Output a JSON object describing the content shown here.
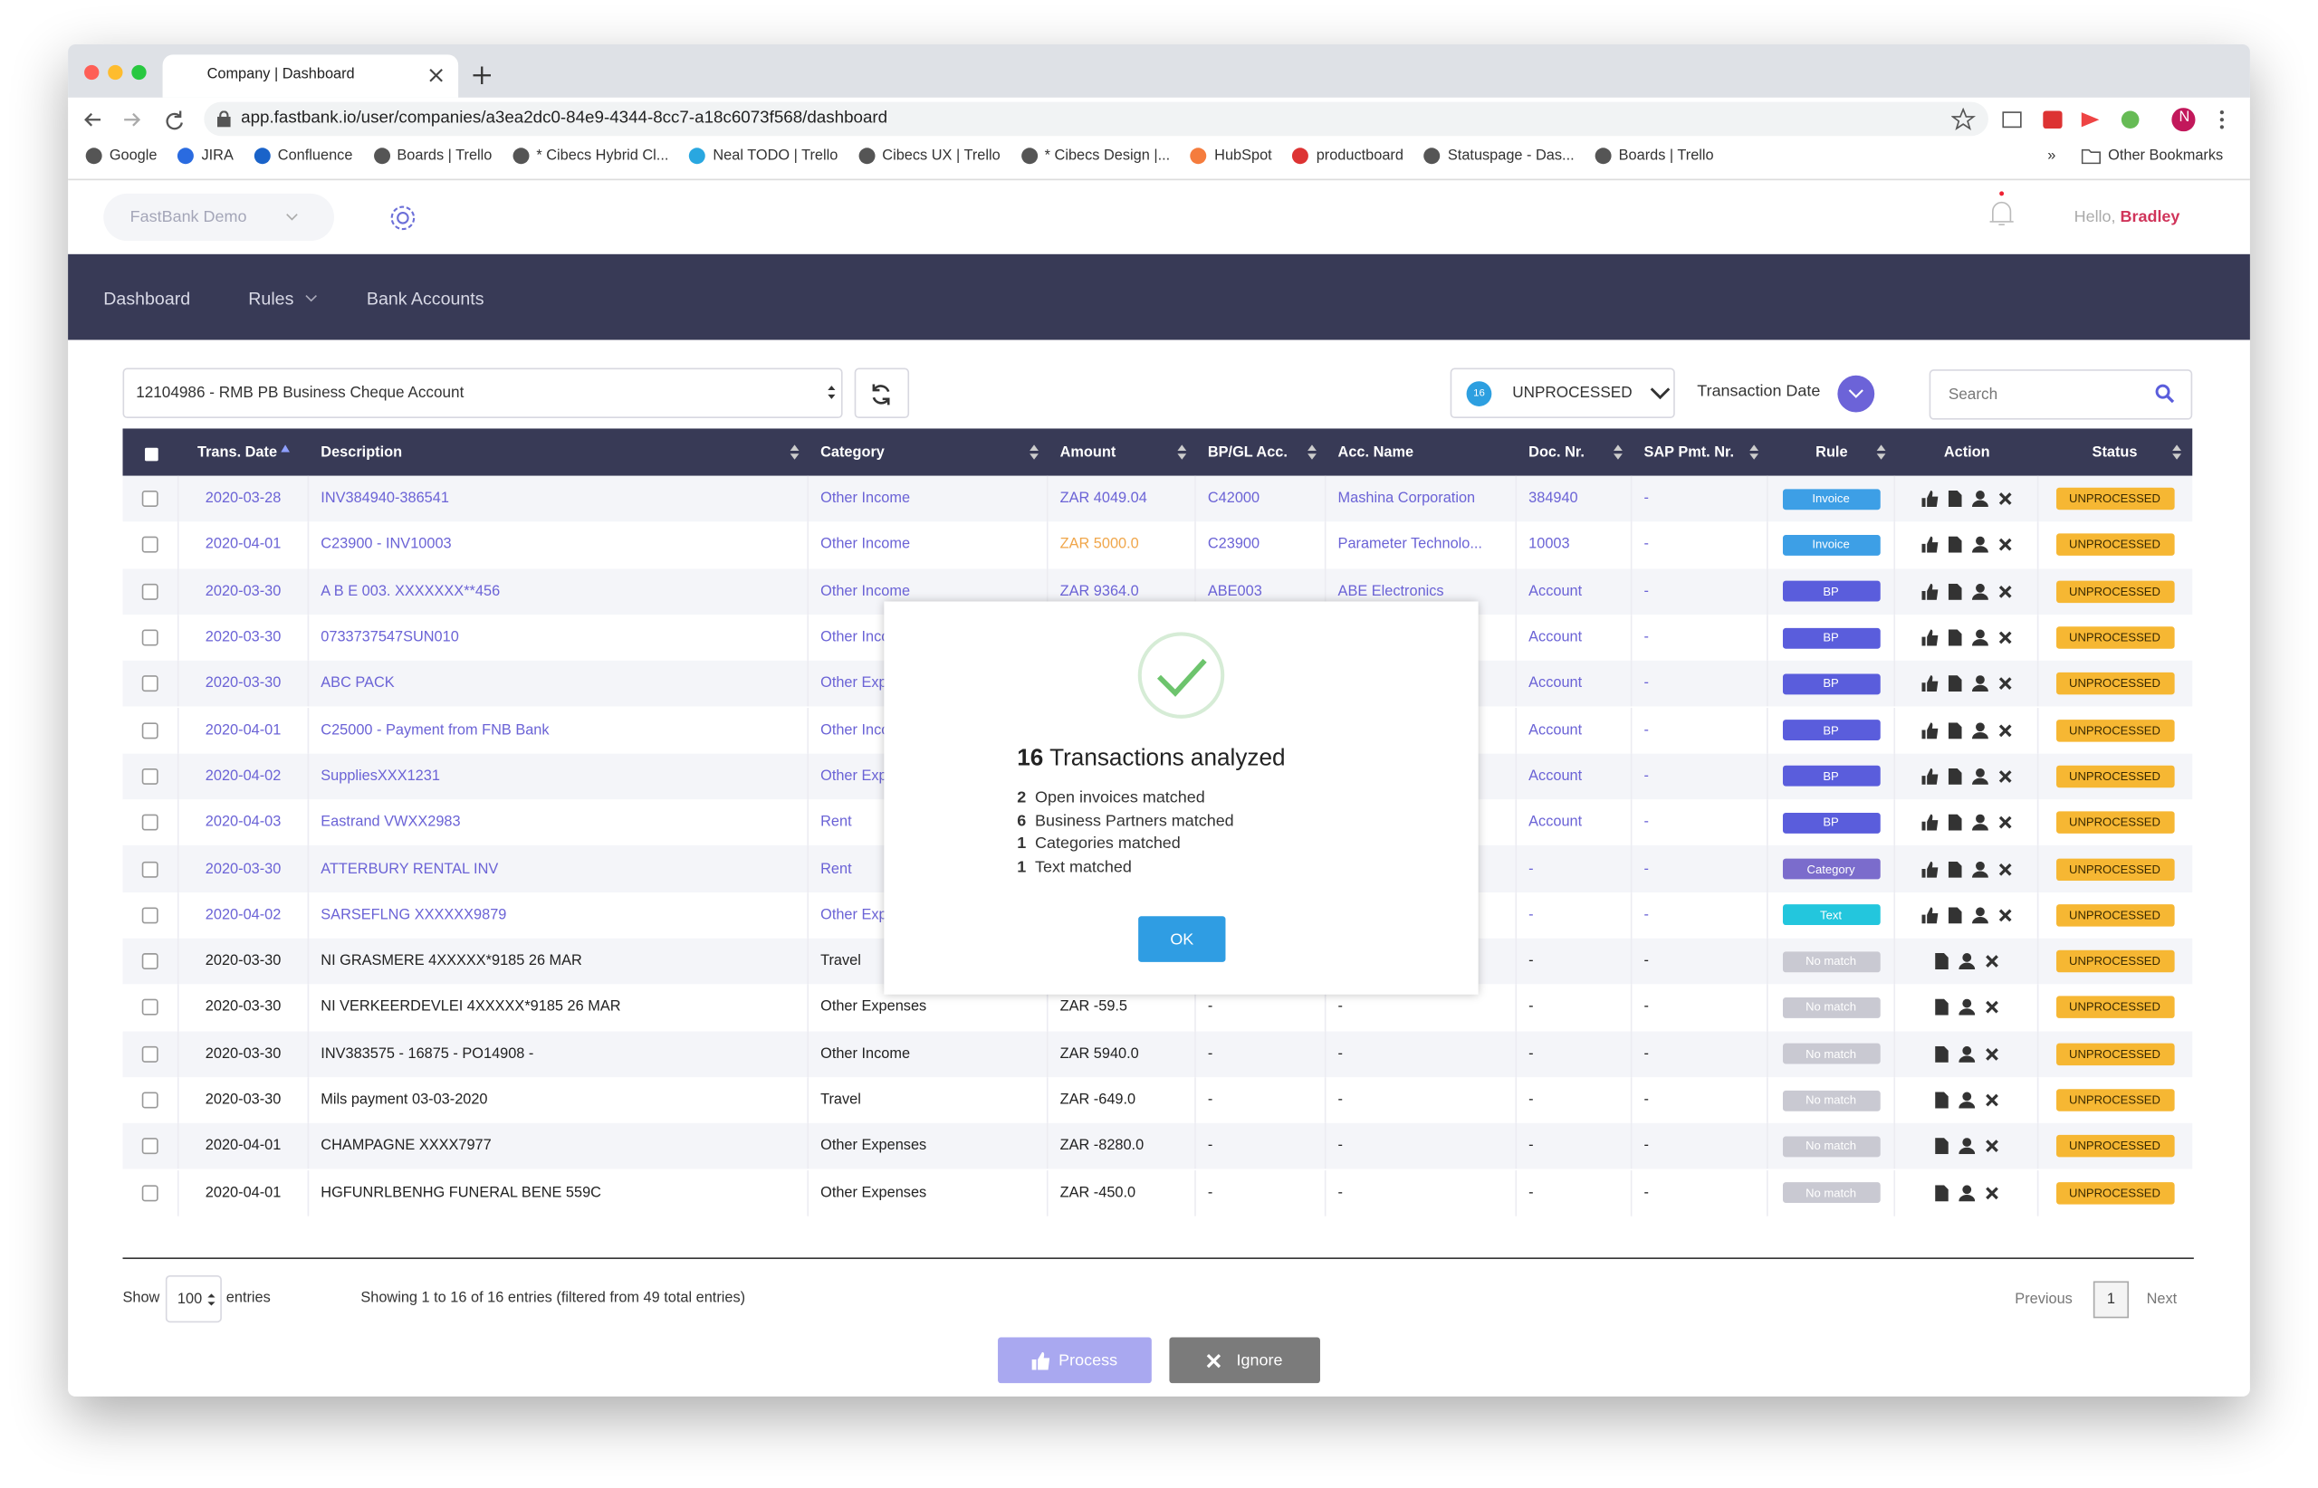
{
  "browser": {
    "tab_title": "Company | Dashboard",
    "url": "app.fastbank.io/user/companies/a3ea2dc0-84e9-4344-8cc7-a18c6073f568/dashboard",
    "bookmarks": [
      "Google",
      "JIRA",
      "Confluence",
      "Boards | Trello",
      "* Cibecs Hybrid Cl...",
      "Neal TODO | Trello",
      "Cibecs UX | Trello",
      "* Cibecs Design |...",
      "HubSpot",
      "productboard",
      "Statuspage - Das...",
      "Boards | Trello"
    ],
    "more": "»",
    "other_bookmarks": "Other Bookmarks"
  },
  "header": {
    "company": "FastBank Demo",
    "greeting": "Hello,",
    "user": "Bradley"
  },
  "nav": [
    "Dashboard",
    "Rules",
    "Bank Accounts"
  ],
  "toolbar": {
    "account": "12104986 - RMB PB Business Cheque Account",
    "count": 16,
    "status_filter": "UNPROCESSED",
    "sort_label": "Transaction Date",
    "search_placeholder": "Search"
  },
  "table": {
    "columns": [
      "Trans. Date",
      "Description",
      "Category",
      "Amount",
      "BP/GL Acc.",
      "Acc. Name",
      "Doc. Nr.",
      "SAP Pmt. Nr.",
      "Rule",
      "Action",
      "Status"
    ],
    "rule_colors": {
      "Invoice": "#3d9fe6",
      "BP": "#5a5ddc",
      "Category": "#7b6ccc",
      "Text": "#23c6dd",
      "No match": "#c9c9d2"
    },
    "rows": [
      {
        "date": "2020-03-28",
        "description": "INV384940-386541",
        "category": "Other Income",
        "amount": "ZAR 4049.04",
        "bp": "C42000",
        "acc_name": "Mashina Corporation",
        "doc": "384940",
        "sap": "-",
        "rule": "Invoice",
        "status": "UNPROCESSED"
      },
      {
        "date": "2020-04-01",
        "description": "C23900 - INV10003",
        "category": "Other Income",
        "amount": "ZAR 5000.0",
        "amount_color": "#f0a64a",
        "bp": "C23900",
        "acc_name": "Parameter Technolo...",
        "doc": "10003",
        "sap": "-",
        "rule": "Invoice",
        "status": "UNPROCESSED"
      },
      {
        "date": "2020-03-30",
        "description": "A B E 003. XXXXXXX**456",
        "category": "Other Income",
        "amount": "ZAR 9364.0",
        "bp": "ABE003",
        "acc_name": "ABE Electronics",
        "doc": "Account",
        "sap": "-",
        "rule": "BP",
        "status": "UNPROCESSED"
      },
      {
        "date": "2020-03-30",
        "description": "0733737547SUN010",
        "category": "Other Income",
        "doc": "Account",
        "sap": "-",
        "rule": "BP",
        "status": "UNPROCESSED"
      },
      {
        "date": "2020-03-30",
        "description": "ABC PACK",
        "category": "Other Expenses",
        "doc": "Account",
        "sap": "-",
        "rule": "BP",
        "status": "UNPROCESSED"
      },
      {
        "date": "2020-04-01",
        "description": "C25000 - Payment from FNB Bank",
        "category": "Other Income",
        "doc": "Account",
        "sap": "-",
        "rule": "BP",
        "status": "UNPROCESSED"
      },
      {
        "date": "2020-04-02",
        "description": "SuppliesXXX1231",
        "category": "Other Expenses",
        "doc": "Account",
        "sap": "-",
        "rule": "BP",
        "status": "UNPROCESSED"
      },
      {
        "date": "2020-04-03",
        "description": "Eastrand VWXX2983",
        "category": "Rent",
        "doc": "Account",
        "sap": "-",
        "rule": "BP",
        "status": "UNPROCESSED"
      },
      {
        "date": "2020-03-30",
        "description": "ATTERBURY RENTAL INV",
        "category": "Rent",
        "doc": "-",
        "sap": "-",
        "rule": "Category",
        "status": "UNPROCESSED"
      },
      {
        "date": "2020-04-02",
        "description": "SARSEFLNG XXXXXX9879",
        "category": "Other Expenses",
        "doc": "-",
        "sap": "-",
        "rule": "Text",
        "status": "UNPROCESSED"
      },
      {
        "date": "2020-03-30",
        "description": "NI GRASMERE 4XXXXX*9185 26 MAR",
        "category": "Travel",
        "doc": "-",
        "sap": "-",
        "rule": "No match",
        "status": "UNPROCESSED"
      },
      {
        "date": "2020-03-30",
        "description": "NI VERKEERDEVLEI 4XXXXX*9185 26 MAR",
        "category": "Other Expenses",
        "amount": "ZAR -59.5",
        "bp": "-",
        "acc_name": "-",
        "doc": "-",
        "sap": "-",
        "rule": "No match",
        "status": "UNPROCESSED"
      },
      {
        "date": "2020-03-30",
        "description": "INV383575 - 16875 - PO14908 -",
        "category": "Other Income",
        "amount": "ZAR 5940.0",
        "bp": "-",
        "acc_name": "-",
        "doc": "-",
        "sap": "-",
        "rule": "No match",
        "status": "UNPROCESSED"
      },
      {
        "date": "2020-03-30",
        "description": "Mils payment 03-03-2020",
        "category": "Travel",
        "amount": "ZAR -649.0",
        "bp": "-",
        "acc_name": "-",
        "doc": "-",
        "sap": "-",
        "rule": "No match",
        "status": "UNPROCESSED"
      },
      {
        "date": "2020-04-01",
        "description": "CHAMPAGNE XXXX7977",
        "category": "Other Expenses",
        "amount": "ZAR -8280.0",
        "bp": "-",
        "acc_name": "-",
        "doc": "-",
        "sap": "-",
        "rule": "No match",
        "status": "UNPROCESSED"
      },
      {
        "date": "2020-04-01",
        "description": "HGFUNRLBENHG FUNERAL BENE 559C",
        "category": "Other Expenses",
        "amount": "ZAR -450.0",
        "bp": "-",
        "acc_name": "-",
        "doc": "-",
        "sap": "-",
        "rule": "No match",
        "status": "UNPROCESSED"
      }
    ]
  },
  "footer": {
    "show": "Show",
    "page_size": 100,
    "entries": "entries",
    "summary": "Showing 1 to 16 of 16 entries (filtered from 49 total entries)",
    "previous": "Previous",
    "page": 1,
    "next": "Next"
  },
  "buttons": {
    "process": "Process",
    "ignore": "Ignore"
  },
  "modal": {
    "count": 16,
    "title": "Transactions analyzed",
    "lines": [
      {
        "count": 2,
        "text": "Open invoices matched"
      },
      {
        "count": 6,
        "text": "Business Partners matched"
      },
      {
        "count": 1,
        "text": "Categories matched"
      },
      {
        "count": 1,
        "text": "Text matched"
      }
    ],
    "ok": "OK"
  }
}
